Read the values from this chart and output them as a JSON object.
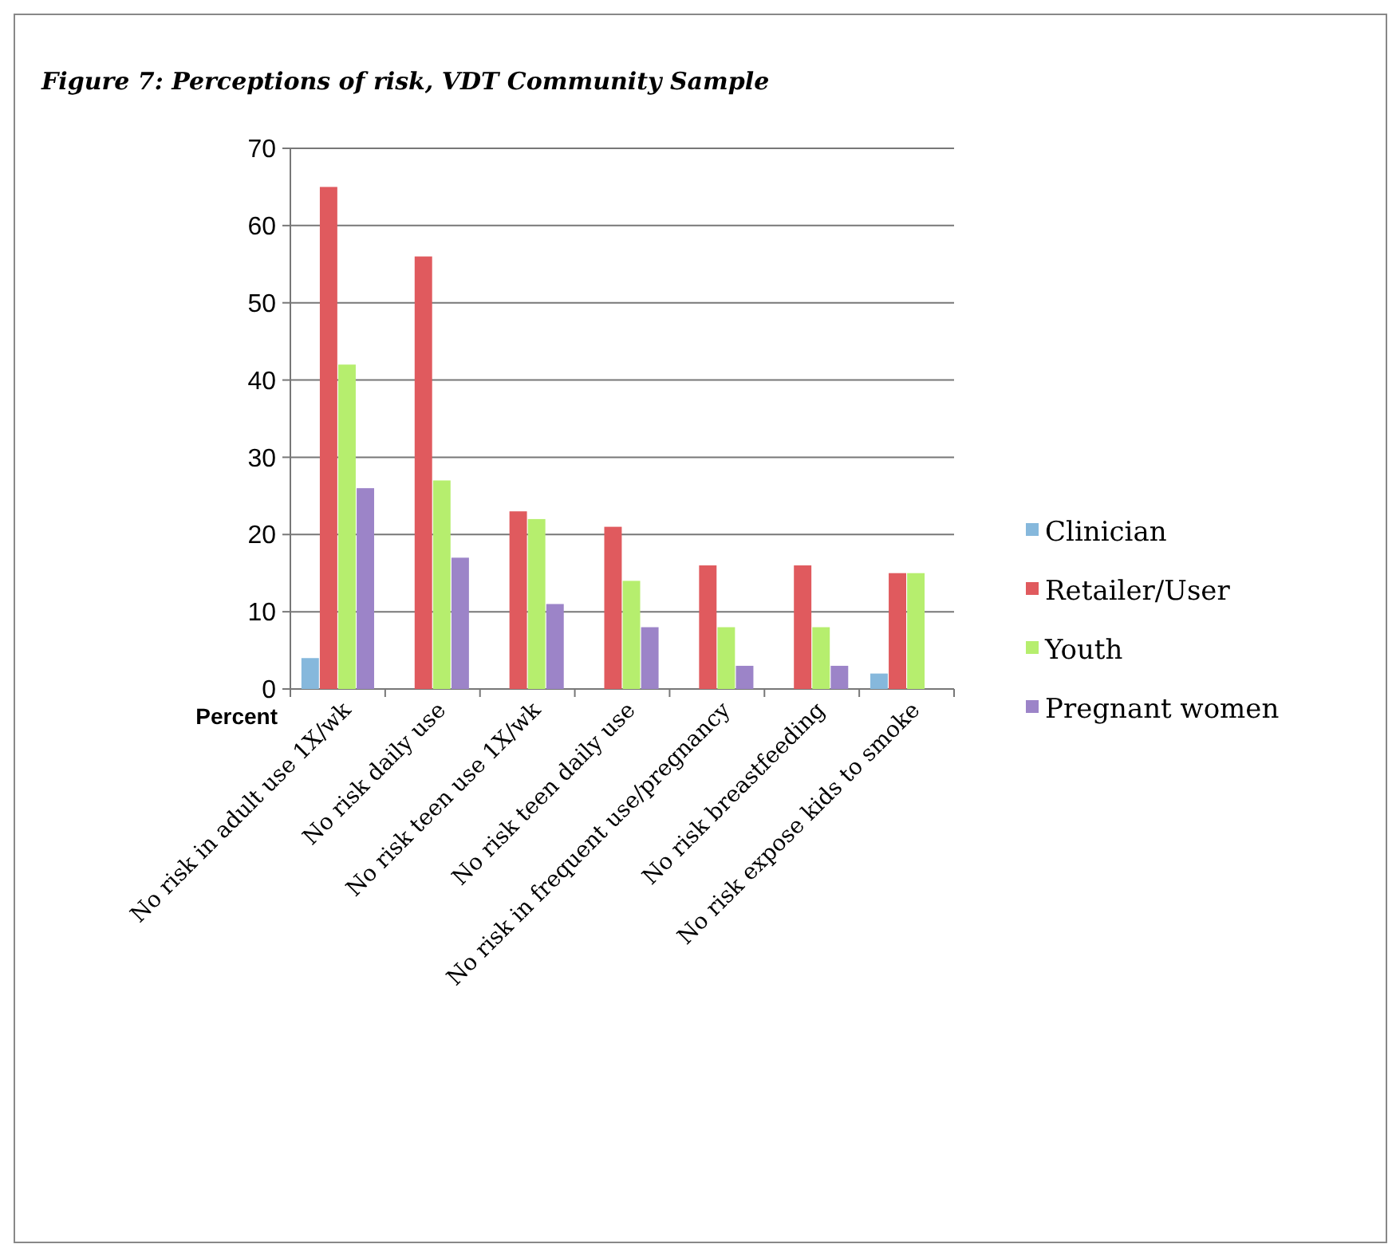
{
  "chart_data": {
    "type": "bar",
    "title": "Figure 7: Perceptions of risk, VDT Community Sample",
    "ylabel": "Percent",
    "categories": [
      "No risk in adult use 1X/wk",
      "No risk daily use",
      "No risk teen use 1X/wk",
      "No risk teen daily use",
      "No risk in frequent use/pregnancy",
      "No risk breastfeeding",
      "No risk expose kids to smoke"
    ],
    "series": [
      {
        "name": "Clinician",
        "color": "#86b8dc",
        "values": [
          4,
          0,
          0,
          0,
          0,
          0,
          2
        ]
      },
      {
        "name": "Retailer/User",
        "color": "#e05a5e",
        "values": [
          65,
          56,
          23,
          21,
          16,
          16,
          15
        ]
      },
      {
        "name": "Youth",
        "color": "#b6ee6e",
        "values": [
          42,
          27,
          22,
          14,
          8,
          8,
          15
        ]
      },
      {
        "name": "Pregnant women",
        "color": "#9c84c8",
        "values": [
          26,
          17,
          11,
          8,
          3,
          3,
          0
        ]
      }
    ],
    "ylim": [
      0,
      70
    ],
    "yticks": [
      0,
      10,
      20,
      30,
      40,
      50,
      60,
      70
    ],
    "grid": "y",
    "legend": "right"
  }
}
